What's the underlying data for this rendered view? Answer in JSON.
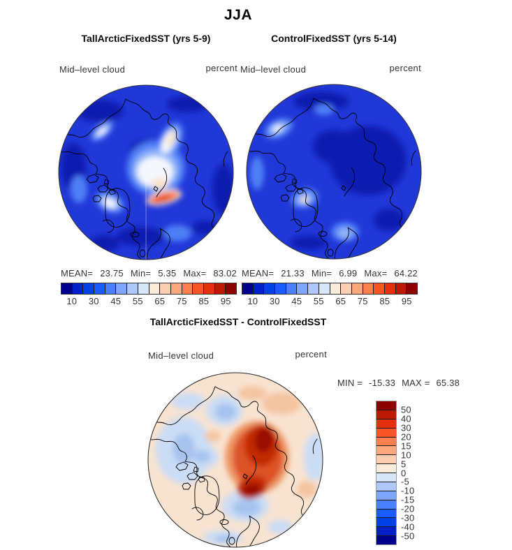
{
  "figure": {
    "title": "JJA"
  },
  "panels": [
    {
      "title": "TallArcticFixedSST (yrs 5-9)",
      "field_label": "Mid–level cloud",
      "units_label": "percent",
      "stats": {
        "mean_label": "MEAN=",
        "mean": "23.75",
        "min_label": "Min=",
        "min": "5.35",
        "max_label": "Max=",
        "max": "83.02"
      },
      "colorbar_ticks": [
        "10",
        "30",
        "45",
        "55",
        "65",
        "75",
        "85",
        "95"
      ]
    },
    {
      "title": "ControlFixedSST (yrs 5-14)",
      "field_label": "Mid–level cloud",
      "units_label": "percent",
      "stats": {
        "mean_label": "MEAN=",
        "mean": "21.33",
        "min_label": "Min=",
        "min": "6.99",
        "max_label": "Max=",
        "max": "64.22"
      },
      "colorbar_ticks": [
        "10",
        "30",
        "45",
        "55",
        "65",
        "75",
        "85",
        "95"
      ]
    }
  ],
  "difference": {
    "title": "TallArcticFixedSST - ControlFixedSST",
    "field_label": "Mid–level cloud",
    "units_label": "percent",
    "range": {
      "min_label": "MIN =",
      "min": "-15.33",
      "max_label": "MAX =",
      "max": "65.38"
    },
    "colorbar_ticks": [
      "50",
      "40",
      "30",
      "20",
      "15",
      "10",
      "5",
      "0",
      "-5",
      "-10",
      "-15",
      "-20",
      "-30",
      "-40",
      "-50"
    ]
  },
  "palette": {
    "blue_to_red": [
      "#00008b",
      "#0021c8",
      "#0041e8",
      "#1a5cff",
      "#4a80ff",
      "#7ea6ff",
      "#aec8fa",
      "#d8e6f9",
      "#fbebdb",
      "#fdcfb2",
      "#fca77e",
      "#fb7f4f",
      "#f85426",
      "#e4300f",
      "#bd1a06",
      "#8b0000"
    ],
    "map_base_blue": "#2138d8",
    "map_dark_blue": "#0a1cb0",
    "diff_base_peach": "#f8e3d1",
    "diff_dark_red": "#9a0e00"
  },
  "chart_data": {
    "type": "heatmap",
    "projection": "north-polar-stereographic",
    "season": "JJA",
    "variable": "Mid-level cloud",
    "units": "percent",
    "panels": [
      {
        "name": "TallArcticFixedSST (yrs 5-9)",
        "mean": 23.75,
        "min": 5.35,
        "max": 83.02,
        "contour_levels": [
          10,
          20,
          30,
          40,
          45,
          50,
          55,
          60,
          65,
          70,
          75,
          80,
          85,
          90,
          95
        ],
        "labeled_levels": [
          10,
          30,
          45,
          55,
          65,
          75,
          85,
          95
        ],
        "legend_position": "below"
      },
      {
        "name": "ControlFixedSST (yrs 5-14)",
        "mean": 21.33,
        "min": 6.99,
        "max": 64.22,
        "contour_levels": [
          10,
          20,
          30,
          40,
          45,
          50,
          55,
          60,
          65,
          70,
          75,
          80,
          85,
          90,
          95
        ],
        "labeled_levels": [
          10,
          30,
          45,
          55,
          65,
          75,
          85,
          95
        ],
        "legend_position": "below"
      },
      {
        "name": "TallArcticFixedSST - ControlFixedSST",
        "min": -15.33,
        "max": 65.38,
        "contour_levels": [
          -50,
          -40,
          -30,
          -20,
          -15,
          -10,
          -5,
          0,
          5,
          10,
          15,
          20,
          30,
          40,
          50
        ],
        "labeled_levels": [
          -50,
          -40,
          -30,
          -20,
          -15,
          -10,
          -5,
          0,
          5,
          10,
          15,
          20,
          30,
          40,
          50
        ],
        "legend_position": "right"
      }
    ],
    "colormap": "blue-white-red diverging, 16 classes"
  }
}
